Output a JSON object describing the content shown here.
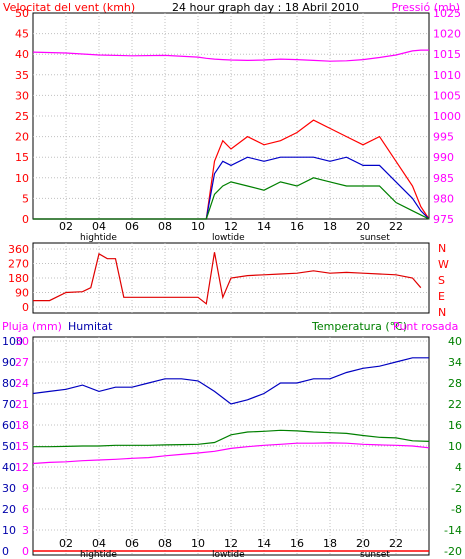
{
  "header": {
    "left_title": "Velocitat del vent (kmh)",
    "center_title": "24 hour graph day : 18 Abril 2010",
    "right_title": "Pressió (mb)"
  },
  "colors": {
    "wind_avg": "#008000",
    "wind_mean": "#0000c8",
    "wind_gust": "#ff0000",
    "pressure": "#ff00ff",
    "direction": "#e00000",
    "humidity": "#0000c0",
    "temperature": "#008000",
    "dewpoint": "#ff00ff",
    "rain": "#ff0000",
    "left_axis": "#ff0000",
    "right_axis": "#ff00ff",
    "hum_axis": "#0000aa",
    "temp_axis": "#008000",
    "grid": "#c0c0c0"
  },
  "x_axis": {
    "hour_labels": [
      "02",
      "04",
      "06",
      "08",
      "10",
      "12",
      "14",
      "16",
      "18",
      "20",
      "22"
    ],
    "markers": {
      "hightide": "hightide",
      "lowtide": "lowtide",
      "sunset": "sunset"
    }
  },
  "chart_data": [
    {
      "type": "line",
      "id": "wind-pressure",
      "title": "24 hour graph day : 18 Abril 2010",
      "ylabel_left": "Velocitat del vent (kmh)",
      "ylabel_right": "Pressió (mb)",
      "y_left_ticks": [
        "0",
        "5",
        "10",
        "15",
        "20",
        "25",
        "30",
        "35",
        "40",
        "45",
        "50"
      ],
      "y_left_lim": [
        0,
        50
      ],
      "y_right_ticks": [
        "975",
        "980",
        "985",
        "990",
        "995",
        "1000",
        "1005",
        "1010",
        "1015",
        "1020",
        "1025"
      ],
      "y_right_lim": [
        975,
        1025
      ],
      "x": [
        0,
        2,
        4,
        6,
        8,
        10,
        10.5,
        11,
        11.5,
        12,
        13,
        14,
        15,
        16,
        17,
        18,
        19,
        20,
        21,
        22,
        23,
        23.5,
        24
      ],
      "series": [
        {
          "name": "wind_gust",
          "axis": "left",
          "values": [
            0,
            0,
            0,
            0,
            0,
            0,
            0,
            14,
            19,
            17,
            20,
            18,
            19,
            21,
            24,
            22,
            20,
            18,
            20,
            14,
            8,
            3,
            0
          ]
        },
        {
          "name": "wind_mean",
          "axis": "left",
          "values": [
            0,
            0,
            0,
            0,
            0,
            0,
            0,
            11,
            14,
            13,
            15,
            14,
            15,
            15,
            15,
            14,
            15,
            13,
            13,
            9,
            5,
            2,
            0
          ]
        },
        {
          "name": "wind_avg",
          "axis": "left",
          "values": [
            0,
            0,
            0,
            0,
            0,
            0,
            0,
            6,
            8,
            9,
            8,
            7,
            9,
            8,
            10,
            9,
            8,
            8,
            8,
            4,
            2,
            1,
            0
          ]
        },
        {
          "name": "pressure",
          "axis": "right",
          "values": [
            1015.5,
            1015.3,
            1014.8,
            1014.6,
            1014.7,
            1014.3,
            1014.0,
            1013.8,
            1013.7,
            1013.6,
            1013.5,
            1013.6,
            1013.8,
            1013.7,
            1013.5,
            1013.3,
            1013.4,
            1013.7,
            1014.2,
            1014.8,
            1015.8,
            1016.0,
            1016.0
          ]
        }
      ]
    },
    {
      "type": "line",
      "id": "wind-direction",
      "y_left_ticks": [
        "0",
        "90",
        "180",
        "270",
        "360"
      ],
      "y_lim": [
        0,
        360
      ],
      "y_right_labels": [
        "N",
        "W",
        "S",
        "E",
        "N"
      ],
      "x": [
        0,
        1,
        2,
        3,
        3.5,
        4,
        4.5,
        5,
        5.5,
        6,
        7,
        8,
        9,
        10,
        10.5,
        11,
        11.5,
        12,
        13,
        14,
        15,
        16,
        17,
        18,
        19,
        20,
        21,
        22,
        23,
        23.5
      ],
      "series": [
        {
          "name": "direction",
          "values": [
            40,
            40,
            90,
            95,
            120,
            330,
            300,
            300,
            60,
            60,
            60,
            60,
            60,
            60,
            20,
            340,
            60,
            180,
            195,
            200,
            205,
            210,
            225,
            210,
            215,
            210,
            205,
            200,
            180,
            120
          ]
        }
      ]
    },
    {
      "type": "line",
      "id": "humidity-temperature",
      "ylabel_left_rain": "Pluja (mm)",
      "ylabel_left_hum": "Humitat",
      "ylabel_right_temp": "Temperatura (°C)",
      "ylabel_right_dew": "Punt rosada",
      "y_hum_ticks": [
        "0",
        "10",
        "20",
        "30",
        "40",
        "50",
        "60",
        "70",
        "80",
        "90",
        "100"
      ],
      "y_hum_lim": [
        0,
        100
      ],
      "y_rain_ticks": [
        "0",
        "3",
        "6",
        "9",
        "12",
        "15",
        "18",
        "21",
        "24",
        "27",
        "30"
      ],
      "y_rain_lim": [
        0,
        30
      ],
      "y_temp_ticks": [
        "-20",
        "-14",
        "-8",
        "-2",
        "4",
        "10",
        "16",
        "22",
        "28",
        "34",
        "40"
      ],
      "y_temp_lim": [
        -20,
        40
      ],
      "x": [
        0,
        1,
        2,
        3,
        4,
        5,
        6,
        7,
        8,
        9,
        10,
        11,
        12,
        13,
        14,
        15,
        16,
        17,
        18,
        19,
        20,
        21,
        22,
        23,
        24
      ],
      "series": [
        {
          "name": "humidity",
          "values": [
            75,
            76,
            77,
            79,
            76,
            78,
            78,
            80,
            82,
            82,
            81,
            76,
            70,
            72,
            75,
            80,
            80,
            82,
            82,
            85,
            87,
            88,
            90,
            92,
            92
          ]
        },
        {
          "name": "temperature",
          "values": [
            9.8,
            9.8,
            9.9,
            10.0,
            10.0,
            10.2,
            10.2,
            10.2,
            10.3,
            10.4,
            10.5,
            11.0,
            13.2,
            14.0,
            14.2,
            14.5,
            14.3,
            14.0,
            13.8,
            13.6,
            13.0,
            12.5,
            12.3,
            11.5,
            11.3
          ]
        },
        {
          "name": "dewpoint",
          "values": [
            5.0,
            5.3,
            5.5,
            5.8,
            6.0,
            6.2,
            6.5,
            6.7,
            7.2,
            7.6,
            8.0,
            8.5,
            9.3,
            9.8,
            10.2,
            10.5,
            10.8,
            10.8,
            10.9,
            10.8,
            10.5,
            10.3,
            10.2,
            10.0,
            9.5
          ]
        },
        {
          "name": "rain",
          "values": [
            0,
            0,
            0,
            0,
            0,
            0,
            0,
            0,
            0,
            0,
            0,
            0,
            0,
            0,
            0,
            0,
            0,
            0,
            0,
            0,
            0,
            0,
            0,
            0,
            0
          ]
        }
      ]
    }
  ]
}
